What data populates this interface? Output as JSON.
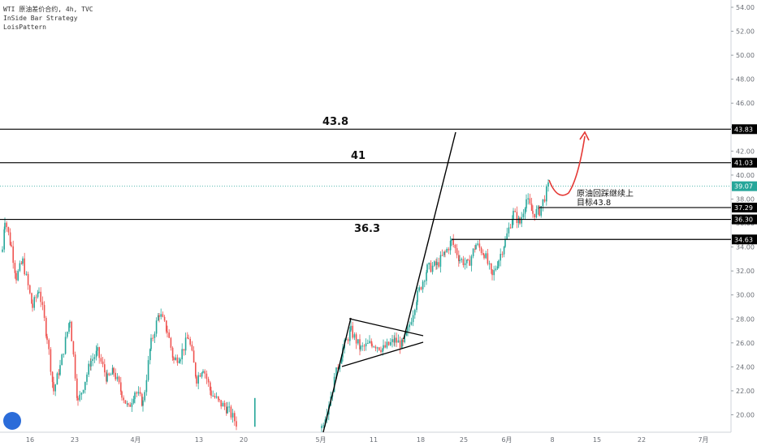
{
  "header": {
    "title": "WTI 原油差价合约, 4h, TVC",
    "indicator": "InSide Bar Strategy",
    "author": "LoisPattern"
  },
  "chart_data": {
    "type": "candlestick",
    "symbol": "WTI 原油差价合约",
    "timeframe": "4h",
    "source": "TVC",
    "ylim": [
      19,
      55
    ],
    "y_ticks": [
      20,
      22,
      24,
      26,
      28,
      30,
      32,
      34,
      36,
      38,
      40,
      42,
      44,
      46,
      48,
      50,
      52,
      54
    ],
    "y_tick_labels": [
      "20.00",
      "22.00",
      "24.00",
      "26.00",
      "28.00",
      "30.00",
      "32.00",
      "34.00",
      "36.00",
      "38.00",
      "40.00",
      "42.00",
      "44.00",
      "46.00",
      "48.00",
      "50.00",
      "52.00",
      "54.00"
    ],
    "x_labels": [
      "16",
      "23",
      "4月",
      "13",
      "20",
      "5月",
      "11",
      "18",
      "25",
      "6月",
      "8",
      "15",
      "22",
      "7月"
    ],
    "current_price": {
      "value": 39.07,
      "label": "39.07"
    },
    "levels": [
      {
        "value": 43.83,
        "axis_label": "43.83",
        "chart_label": "43.8"
      },
      {
        "value": 41.03,
        "axis_label": "41.03",
        "chart_label": "41"
      },
      {
        "value": 37.29,
        "axis_label": "37.29",
        "chart_label": ""
      },
      {
        "value": 36.3,
        "axis_label": "36.30",
        "chart_label": "36.3"
      },
      {
        "value": 34.63,
        "axis_label": "34.63",
        "chart_label": ""
      }
    ],
    "annotation": [
      "原油回踩继续上",
      "目标43.8"
    ],
    "colors": {
      "up": "#26a69a",
      "down": "#ef5350",
      "arrow": "#e53935",
      "line": "#000000",
      "price": "#26a69a"
    }
  }
}
